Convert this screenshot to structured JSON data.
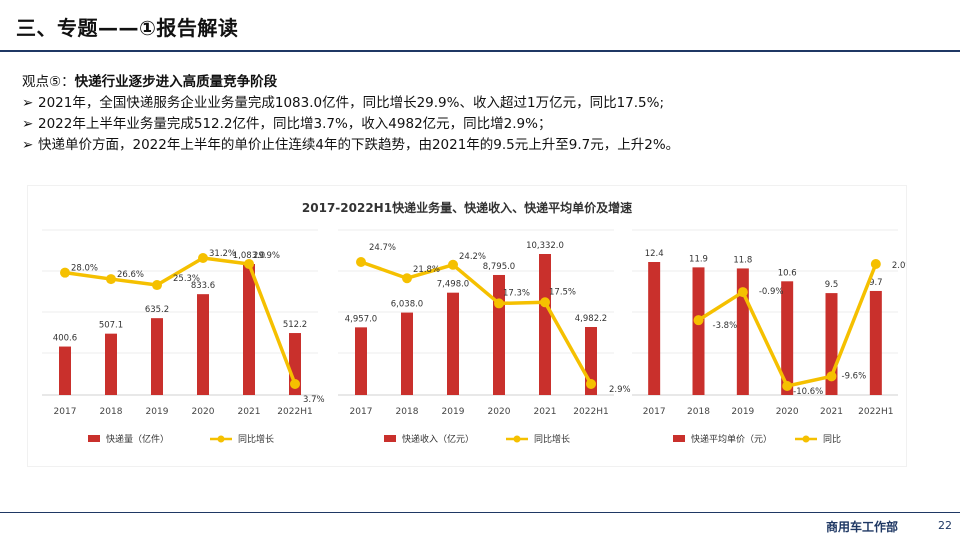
{
  "slide": {
    "title": "三、专题——①报告解读",
    "section_label": "观点⑤：",
    "section_heading": "快递行业逐步进入高质量竞争阶段",
    "bullets": [
      "2021年，全国快递服务企业业务量完成1083.0亿件，同比增长29.9%、收入超过1万亿元，同比17.5%;",
      "2022年上半年业务量完成512.2亿件，同比增3.7%，收入4982亿元，同比增2.9%；",
      "快递单价方面，2022年上半年的单价止住连续4年的下跌趋势，由2021年的9.5元上升至9.7元，上升2%。"
    ],
    "bullet_marker": "➢",
    "footer_label": "商用车工作部",
    "page_number": "22"
  },
  "colors": {
    "bar": "#c9302c",
    "line": "#f5c000",
    "navy": "#1f3864"
  },
  "chart_title": "2017-2022H1快递业务量、快递收入、快递平均单价及增速",
  "chart_data": [
    {
      "type": "bar",
      "categories": [
        "2017",
        "2018",
        "2019",
        "2020",
        "2021",
        "2022H1"
      ],
      "series": [
        {
          "name": "快递量（亿件）",
          "type": "bar",
          "values": [
            400.6,
            507.1,
            635.2,
            833.6,
            1083.0,
            512.2
          ],
          "labels": [
            "400.6",
            "507.1",
            "635.2",
            "833.6",
            "1,083.0",
            "512.2"
          ]
        },
        {
          "name": "同比增长",
          "type": "line",
          "values": [
            28.0,
            26.6,
            25.3,
            31.2,
            29.9,
            3.7
          ],
          "labels": [
            "28.0%",
            "26.6%",
            "25.3%",
            "31.2%",
            "29.9%",
            "3.7%"
          ]
        }
      ],
      "legend_position": "bottom"
    },
    {
      "type": "bar",
      "categories": [
        "2017",
        "2018",
        "2019",
        "2020",
        "2021",
        "2022H1"
      ],
      "series": [
        {
          "name": "快递收入（亿元）",
          "type": "bar",
          "values": [
            4957.0,
            6038.0,
            7498.0,
            8795.0,
            10332.0,
            4982.2
          ],
          "labels": [
            "4,957.0",
            "6,038.0",
            "7,498.0",
            "8,795.0",
            "10,332.0",
            "4,982.2"
          ]
        },
        {
          "name": "同比增长",
          "type": "line",
          "values": [
            24.7,
            21.8,
            24.2,
            17.3,
            17.5,
            2.9
          ],
          "labels": [
            "24.7%",
            "21.8%",
            "24.2%",
            "17.3%",
            "17.5%",
            "2.9%"
          ]
        }
      ],
      "legend_position": "bottom"
    },
    {
      "type": "bar",
      "categories": [
        "2017",
        "2018",
        "2019",
        "2020",
        "2021",
        "2022H1"
      ],
      "series": [
        {
          "name": "快递平均单价（元）",
          "type": "bar",
          "values": [
            12.4,
            11.9,
            11.8,
            10.6,
            9.5,
            9.7
          ],
          "labels": [
            "12.4",
            "11.9",
            "11.8",
            "10.6",
            "9.5",
            "9.7"
          ]
        },
        {
          "name": "同比",
          "type": "line",
          "values": [
            null,
            -3.8,
            -0.9,
            -10.6,
            -9.6,
            2.0
          ],
          "labels": [
            "",
            "-3.8%",
            "-0.9%",
            "-10.6%",
            "-9.6%",
            "2.0%"
          ]
        }
      ],
      "legend_position": "bottom"
    }
  ]
}
